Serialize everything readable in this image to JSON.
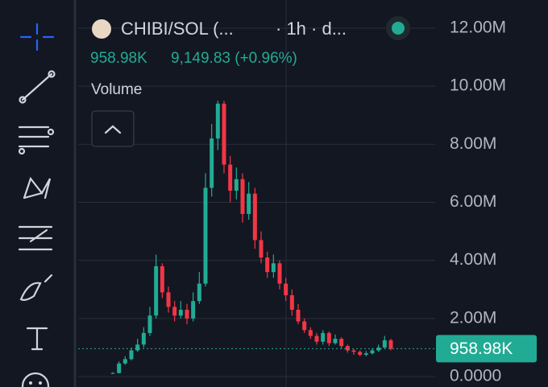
{
  "chart_data": {
    "type": "candlestick",
    "symbol": "CHIBI/SOL (...",
    "interval": "· 1h · d...",
    "change": "9,149.83 (+0.96%)",
    "study": "Volume",
    "last_value_label": "958.98K",
    "up_color": "#22ab94",
    "down_color": "#f23645",
    "ylim": [
      0,
      12000000
    ],
    "yticks": [
      {
        "value": 0,
        "label": "0.0000"
      },
      {
        "value": 2000000,
        "label": "2.00M"
      },
      {
        "value": 4000000,
        "label": "4.00M"
      },
      {
        "value": 6000000,
        "label": "6.00M"
      },
      {
        "value": 8000000,
        "label": "8.00M"
      },
      {
        "value": 10000000,
        "label": "10.00M"
      },
      {
        "value": 12000000,
        "label": "12.00M"
      }
    ],
    "open": [
      100000,
      120000,
      450000,
      600000,
      900000,
      1100000,
      1500000,
      2100000,
      3800000,
      2900000,
      2400000,
      2100000,
      2300000,
      2000000,
      2600000,
      3200000,
      6500000,
      8200000,
      9400000,
      7300000,
      6400000,
      6800000,
      5600000,
      6300000,
      4700000,
      4100000,
      3600000,
      3900000,
      3200000,
      2800000,
      2300000,
      1900000,
      1600000,
      1400000,
      1200000,
      1500000,
      1150000,
      1300000,
      1050000,
      900000,
      850000,
      750000,
      800000,
      900000,
      1000000,
      1250000
    ],
    "high": [
      150000,
      520000,
      700000,
      1000000,
      1300000,
      1700000,
      2400000,
      4200000,
      3900000,
      3100000,
      2600000,
      2600000,
      2500000,
      2900000,
      3600000,
      7000000,
      8700000,
      9500000,
      9500000,
      7600000,
      7200000,
      7000000,
      6700000,
      6500000,
      5000000,
      4300000,
      4200000,
      4000000,
      3400000,
      3000000,
      2500000,
      2000000,
      1700000,
      1500000,
      1600000,
      1550000,
      1450000,
      1350000,
      1100000,
      950000,
      900000,
      880000,
      980000,
      1100000,
      1400000,
      1300000
    ],
    "low": [
      90000,
      110000,
      400000,
      550000,
      850000,
      1000000,
      1400000,
      2000000,
      2700000,
      2200000,
      1900000,
      2000000,
      1800000,
      1900000,
      2500000,
      3100000,
      6200000,
      7800000,
      7000000,
      6000000,
      6100000,
      5300000,
      5400000,
      4400000,
      3900000,
      3400000,
      3400000,
      3000000,
      2600000,
      2100000,
      1800000,
      1500000,
      1300000,
      1100000,
      1100000,
      1050000,
      1100000,
      950000,
      820000,
      750000,
      700000,
      700000,
      760000,
      850000,
      950000,
      900000
    ],
    "close": [
      120000,
      450000,
      600000,
      900000,
      1100000,
      1500000,
      2100000,
      3800000,
      2900000,
      2400000,
      2100000,
      2300000,
      2000000,
      2600000,
      3200000,
      6500000,
      8200000,
      9400000,
      7300000,
      6400000,
      6800000,
      5600000,
      6300000,
      4700000,
      4100000,
      3600000,
      3900000,
      3200000,
      2800000,
      2300000,
      1900000,
      1600000,
      1400000,
      1200000,
      1500000,
      1150000,
      1300000,
      1050000,
      900000,
      850000,
      750000,
      800000,
      900000,
      1000000,
      1250000,
      958980
    ]
  }
}
